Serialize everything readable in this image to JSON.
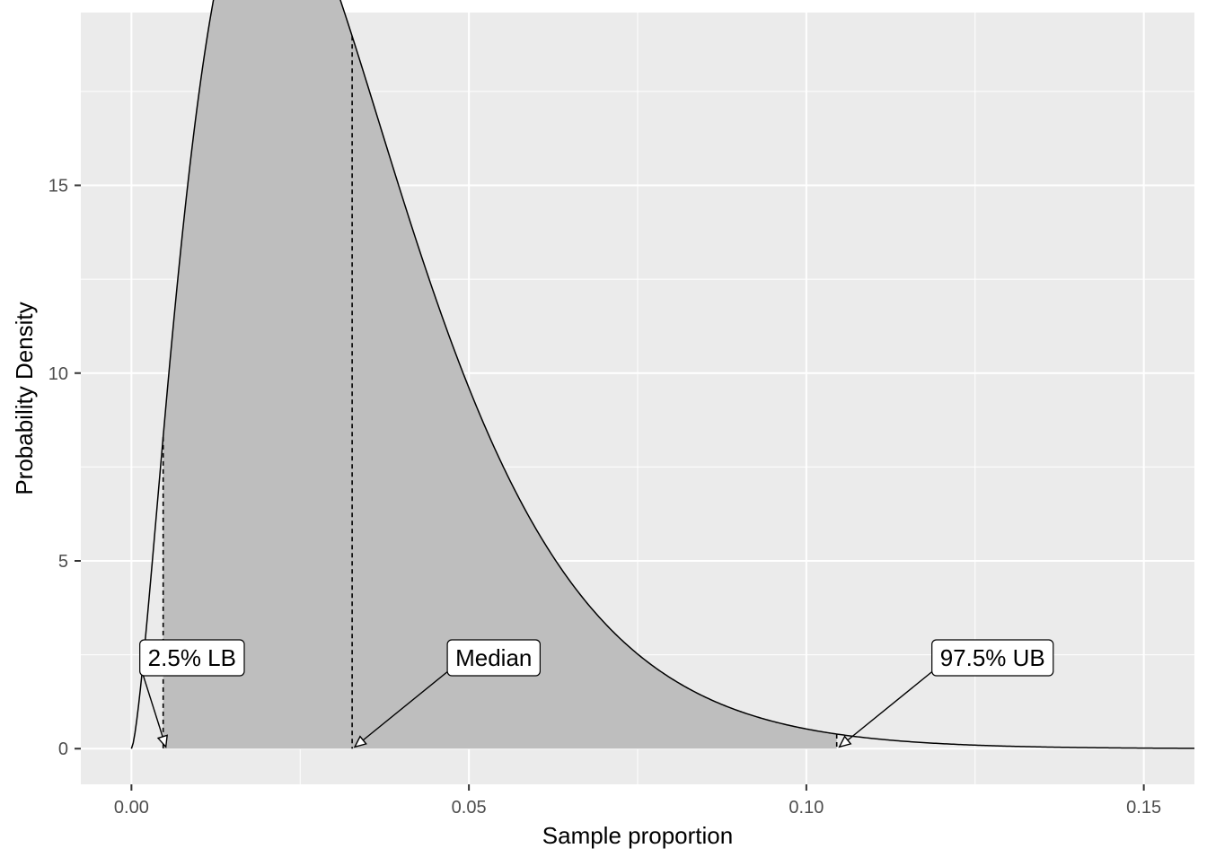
{
  "chart_data": {
    "type": "area",
    "xlabel": "Sample proportion",
    "ylabel": "Probability Density",
    "xlim": [
      -0.0075,
      0.1575
    ],
    "ylim": [
      -0.95,
      19.6
    ],
    "x_ticks": [
      0.0,
      0.05,
      0.1,
      0.15
    ],
    "x_tick_labels": [
      "0.00",
      "0.05",
      "0.10",
      "0.15"
    ],
    "y_ticks": [
      0,
      5,
      10,
      15
    ],
    "y_tick_labels": [
      "0",
      "5",
      "10",
      "15"
    ],
    "grid": true,
    "legend": "none",
    "distribution": {
      "family": "beta",
      "alpha": 2.5,
      "beta": 74
    },
    "curve_x_range": [
      0.0,
      0.1575
    ],
    "shaded_region": {
      "from": 0.0047,
      "to": 0.1045
    },
    "markers": [
      {
        "name": "2.5% LB",
        "x": 0.0047,
        "label": "2.5% LB"
      },
      {
        "name": "Median",
        "x": 0.0327,
        "label": "Median"
      },
      {
        "name": "97.5% UB",
        "x": 0.1045,
        "label": "97.5% UB"
      }
    ],
    "colors": {
      "panel": "#EBEBEB",
      "grid": "#FFFFFF",
      "fill": "#BEBEBE",
      "line": "#000000"
    }
  }
}
